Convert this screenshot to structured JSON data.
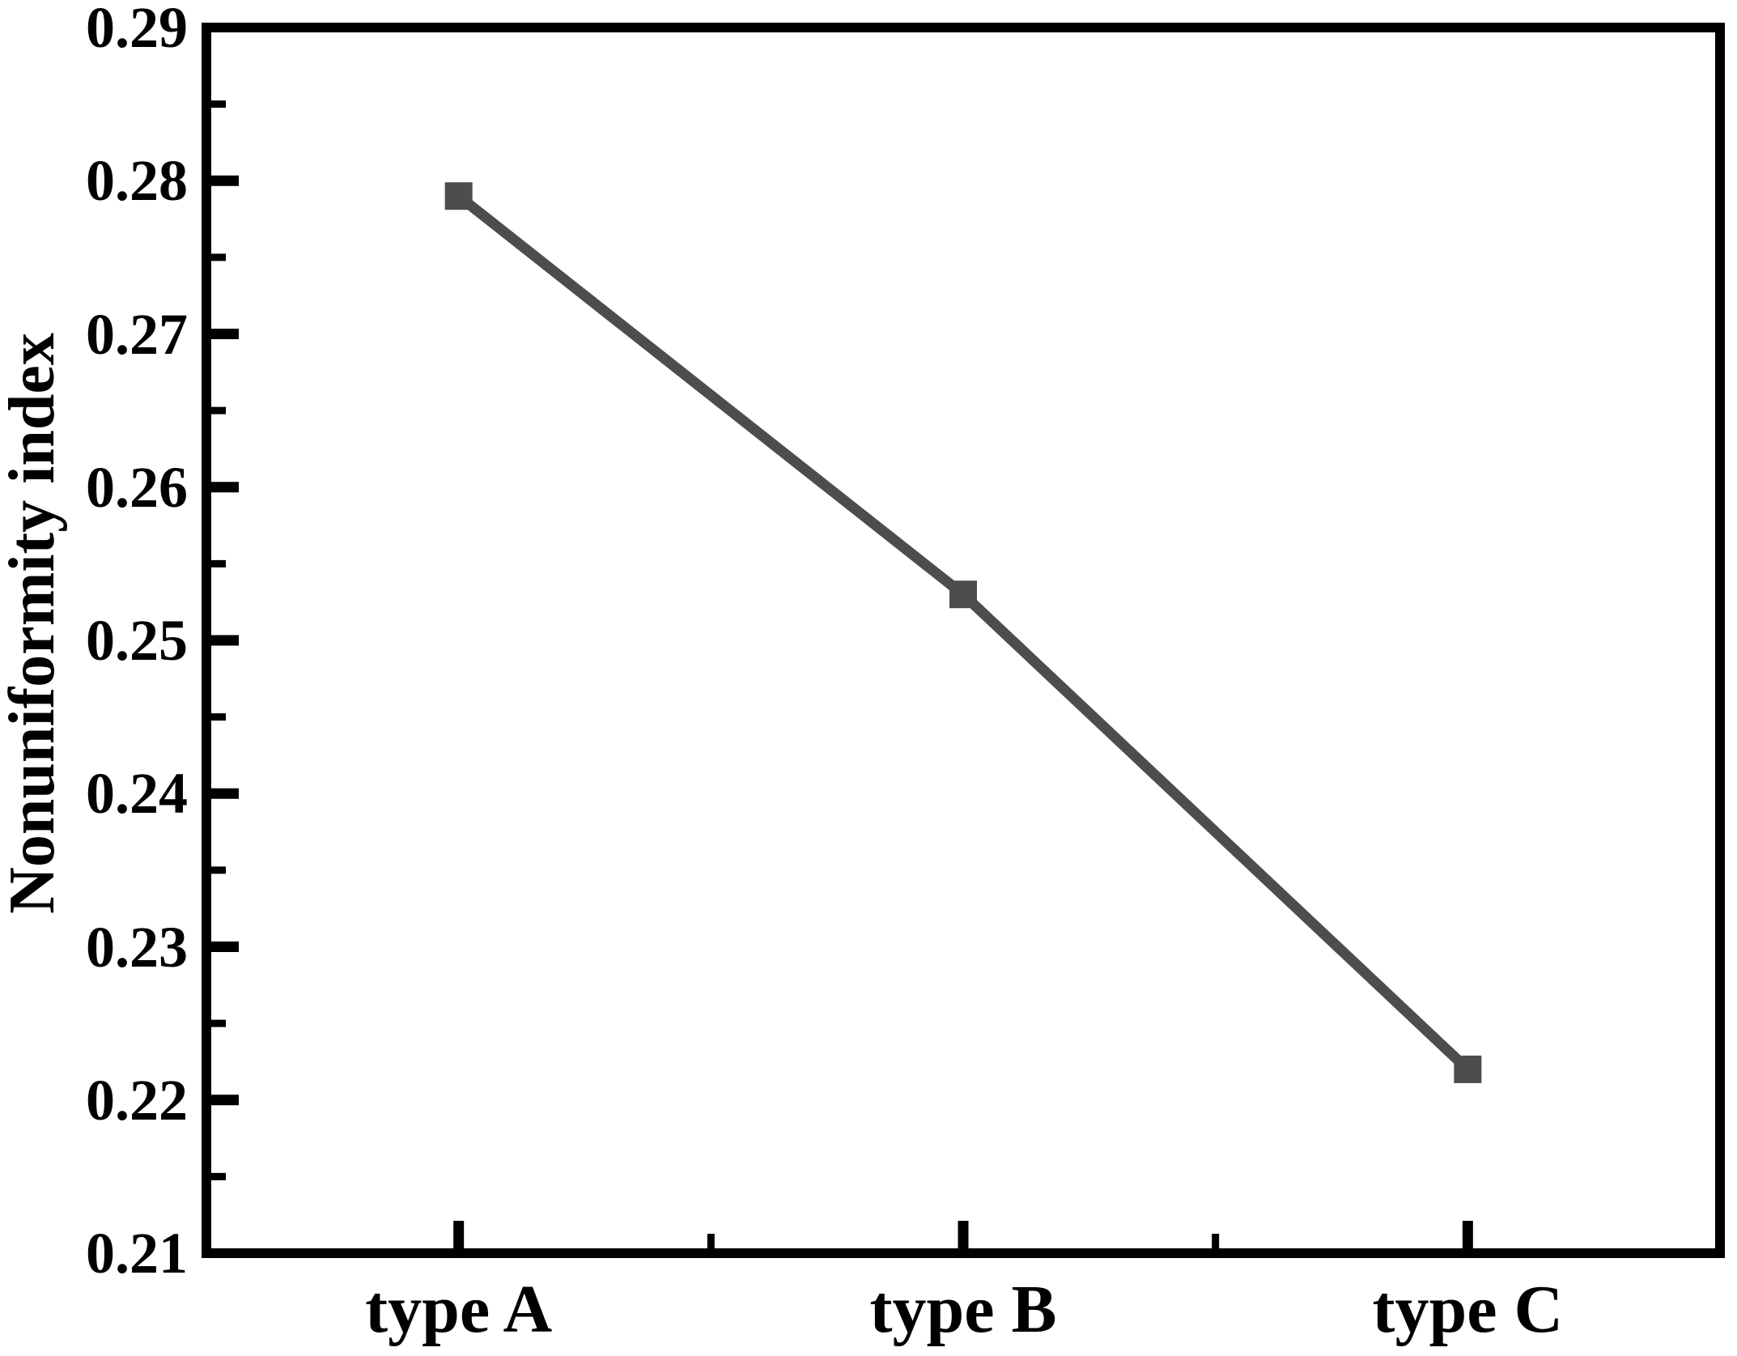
{
  "figure": {
    "background_color": "#ffffff",
    "axis_color": "#000000",
    "series_color": "#4d4d4d"
  },
  "chart_data": {
    "type": "line",
    "title": "",
    "xlabel": "",
    "ylabel": "Nonuniformity index",
    "categories": [
      "type A",
      "type B",
      "type C"
    ],
    "series": [
      {
        "name": "Nonuniformity index",
        "values": [
          0.279,
          0.253,
          0.222
        ]
      }
    ],
    "ylim": [
      0.21,
      0.29
    ],
    "y_major_step": 0.01,
    "y_minor_step": 0.005,
    "y_tick_labels": [
      "0.29",
      "0.28",
      "0.27",
      "0.26",
      "0.25",
      "0.24",
      "0.23",
      "0.22",
      "0.21"
    ],
    "x_minor_ticks": "midpoints between categories",
    "grid": false,
    "legend_visible": false,
    "marker": "filled-square"
  }
}
